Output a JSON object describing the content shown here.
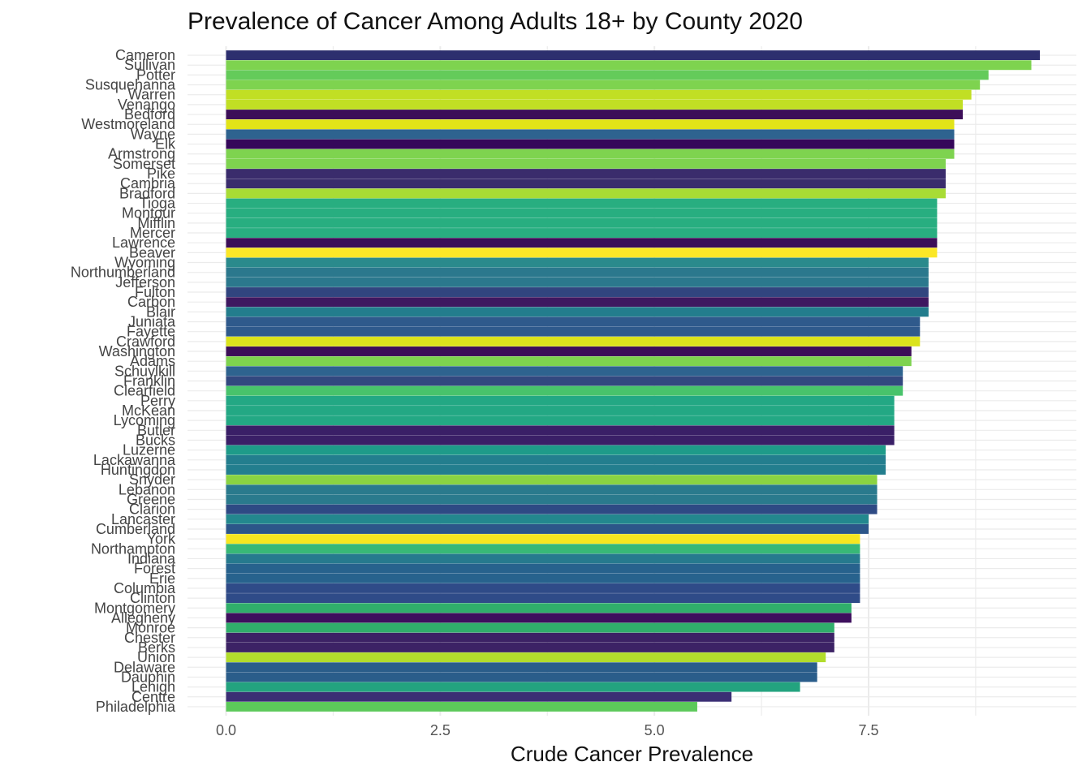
{
  "chart_data": {
    "type": "bar",
    "orientation": "horizontal",
    "title": "Prevalence of Cancer Among Adults 18+ by County 2020",
    "xlabel": "Crude Cancer Prevalence",
    "ylabel": "",
    "xlim": [
      0,
      9.6
    ],
    "x_ticks": [
      "0.0",
      "2.5",
      "5.0",
      "7.5"
    ],
    "x_tick_values": [
      0,
      2.5,
      5.0,
      7.5
    ],
    "grid": true,
    "legend": "none",
    "categories": [
      "Cameron",
      "Sullivan",
      "Potter",
      "Susquehanna",
      "Warren",
      "Venango",
      "Bedford",
      "Westmoreland",
      "Wayne",
      "Elk",
      "Armstrong",
      "Somerset",
      "Pike",
      "Cambria",
      "Bradford",
      "Tioga",
      "Montour",
      "Mifflin",
      "Mercer",
      "Lawrence",
      "Beaver",
      "Wyoming",
      "Northumberland",
      "Jefferson",
      "Fulton",
      "Carbon",
      "Blair",
      "Juniata",
      "Fayette",
      "Crawford",
      "Washington",
      "Adams",
      "Schuylkill",
      "Franklin",
      "Clearfield",
      "Perry",
      "McKean",
      "Lycoming",
      "Butler",
      "Bucks",
      "Luzerne",
      "Lackawanna",
      "Huntingdon",
      "Snyder",
      "Lebanon",
      "Greene",
      "Clarion",
      "Lancaster",
      "Cumberland",
      "York",
      "Northampton",
      "Indiana",
      "Forest",
      "Erie",
      "Columbia",
      "Clinton",
      "Montgomery",
      "Allegheny",
      "Monroe",
      "Chester",
      "Berks",
      "Union",
      "Delaware",
      "Dauphin",
      "Lehigh",
      "Centre",
      "Philadelphia"
    ],
    "values": [
      9.5,
      9.4,
      8.9,
      8.8,
      8.7,
      8.6,
      8.6,
      8.5,
      8.5,
      8.5,
      8.5,
      8.4,
      8.4,
      8.4,
      8.4,
      8.3,
      8.3,
      8.3,
      8.3,
      8.3,
      8.3,
      8.2,
      8.2,
      8.2,
      8.2,
      8.2,
      8.2,
      8.1,
      8.1,
      8.1,
      8.0,
      8.0,
      7.9,
      7.9,
      7.9,
      7.8,
      7.8,
      7.8,
      7.8,
      7.8,
      7.7,
      7.7,
      7.7,
      7.6,
      7.6,
      7.6,
      7.6,
      7.5,
      7.5,
      7.4,
      7.4,
      7.4,
      7.4,
      7.4,
      7.4,
      7.4,
      7.3,
      7.3,
      7.1,
      7.1,
      7.1,
      7.0,
      6.9,
      6.9,
      6.7,
      5.9,
      5.5
    ],
    "colors": [
      "#2d2f6e",
      "#7ed34f",
      "#64cb5a",
      "#7ed34f",
      "#c1df24",
      "#c1df24",
      "#3c0e58",
      "#e2e418",
      "#2e638f",
      "#35075a",
      "#7ed34f",
      "#7ed34f",
      "#3a2c6c",
      "#3a2c6c",
      "#a8dc35",
      "#28ae80",
      "#28ae80",
      "#28ae80",
      "#28ae80",
      "#3c0e58",
      "#fbe726",
      "#2a8a8c",
      "#2b788d",
      "#2b788d",
      "#31457f",
      "#3e1860",
      "#237d8d",
      "#2f5a8c",
      "#2f5a8c",
      "#dbe31d",
      "#3c0e58",
      "#7ed34f",
      "#2e638f",
      "#32487f",
      "#48c36b",
      "#23a884",
      "#23a884",
      "#23a884",
      "#3a1f67",
      "#3a1f67",
      "#1e9b89",
      "#237e8e",
      "#237e8e",
      "#8ad342",
      "#2a7a8d",
      "#2a7a8d",
      "#2e4a84",
      "#23888e",
      "#2c5689",
      "#f7e620",
      "#38b877",
      "#267a8e",
      "#27628d",
      "#27628d",
      "#2f4b88",
      "#2f4b88",
      "#30ae6b",
      "#3e0f5d",
      "#30ae6b",
      "#3c2265",
      "#3c2265",
      "#b2dc2c",
      "#2a5d8a",
      "#2a5d8a",
      "#23a37f",
      "#3b2e74",
      "#5cc95a"
    ]
  }
}
